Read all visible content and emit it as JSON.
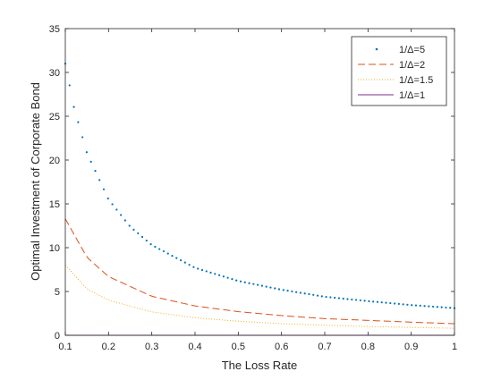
{
  "chart_data": {
    "type": "line",
    "title": "",
    "xlabel": "The Loss Rate",
    "ylabel": "Optimal Investment of Corporate Bond",
    "xlim": [
      0.1,
      1
    ],
    "ylim": [
      0,
      35
    ],
    "xticks": [
      "0.1",
      "0.2",
      "0.3",
      "0.4",
      "0.5",
      "0.6",
      "0.7",
      "0.8",
      "0.9",
      "1"
    ],
    "yticks": [
      "0",
      "5",
      "10",
      "15",
      "20",
      "25",
      "30",
      "35"
    ],
    "grid": false,
    "legend_position": "top-right",
    "series": [
      {
        "name": "1/Δ=5",
        "style": "dotted-markers",
        "color": "#0072BD",
        "x": [
          0.1,
          0.12,
          0.15,
          0.2,
          0.25,
          0.3,
          0.4,
          0.5,
          0.6,
          0.7,
          0.8,
          0.9,
          1.0
        ],
        "values": [
          31.0,
          26.0,
          20.8,
          15.5,
          12.4,
          10.3,
          7.7,
          6.2,
          5.2,
          4.4,
          3.9,
          3.45,
          3.1
        ]
      },
      {
        "name": "1/Δ=2",
        "style": "dashed",
        "color": "#D95319",
        "x": [
          0.1,
          0.15,
          0.2,
          0.3,
          0.4,
          0.5,
          0.6,
          0.7,
          0.8,
          0.9,
          1.0
        ],
        "values": [
          13.3,
          8.9,
          6.7,
          4.45,
          3.35,
          2.7,
          2.25,
          1.9,
          1.7,
          1.5,
          1.33
        ]
      },
      {
        "name": "1/Δ=1.5",
        "style": "dotted",
        "color": "#EDB120",
        "x": [
          0.1,
          0.15,
          0.2,
          0.3,
          0.4,
          0.5,
          0.6,
          0.7,
          0.8,
          0.9,
          1.0
        ],
        "values": [
          8.0,
          5.3,
          4.0,
          2.67,
          2.0,
          1.6,
          1.33,
          1.15,
          1.0,
          0.9,
          0.8
        ]
      },
      {
        "name": "1/Δ=1",
        "style": "solid",
        "color": "#7E2F8E",
        "x": [
          0.1,
          1.0
        ],
        "values": [
          0,
          0
        ]
      }
    ]
  }
}
